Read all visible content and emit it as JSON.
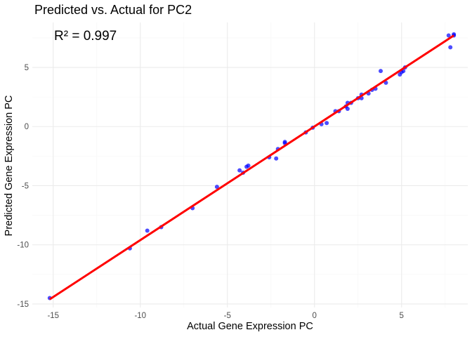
{
  "chart_data": {
    "type": "scatter",
    "title": "Predicted vs. Actual for PC2",
    "annotation": "R² = 0.997",
    "xlabel": "Actual Gene Expression PC",
    "ylabel": "Predicted Gene Expression PC",
    "xlim": [
      -16.2,
      8.8
    ],
    "ylim": [
      -15.3,
      8.8
    ],
    "x_ticks": [
      -15,
      -10,
      -5,
      0,
      5
    ],
    "x_tick_labels": [
      "-15",
      "-10",
      "-5",
      "0",
      "5"
    ],
    "y_ticks": [
      -15,
      -10,
      -5,
      0,
      5
    ],
    "y_tick_labels": [
      "-15",
      "-10",
      "-5",
      "0",
      "5"
    ],
    "grid": true,
    "points": [
      {
        "x": -15.2,
        "y": -14.5
      },
      {
        "x": -10.6,
        "y": -10.3
      },
      {
        "x": -9.6,
        "y": -8.8
      },
      {
        "x": -8.8,
        "y": -8.5
      },
      {
        "x": -7.0,
        "y": -6.9
      },
      {
        "x": -5.6,
        "y": -5.1
      },
      {
        "x": -4.3,
        "y": -3.7
      },
      {
        "x": -4.1,
        "y": -3.9
      },
      {
        "x": -3.9,
        "y": -3.4
      },
      {
        "x": -3.8,
        "y": -3.3
      },
      {
        "x": -2.6,
        "y": -2.6
      },
      {
        "x": -2.2,
        "y": -2.7
      },
      {
        "x": -2.1,
        "y": -1.9
      },
      {
        "x": -1.7,
        "y": -1.4
      },
      {
        "x": -1.7,
        "y": -1.3
      },
      {
        "x": -0.5,
        "y": -0.5
      },
      {
        "x": -0.1,
        "y": -0.1
      },
      {
        "x": 0.4,
        "y": 0.2
      },
      {
        "x": 0.7,
        "y": 0.3
      },
      {
        "x": 1.2,
        "y": 1.3
      },
      {
        "x": 1.4,
        "y": 1.3
      },
      {
        "x": 1.8,
        "y": 1.7
      },
      {
        "x": 1.9,
        "y": 1.5
      },
      {
        "x": 1.9,
        "y": 2.0
      },
      {
        "x": 2.1,
        "y": 2.0
      },
      {
        "x": 2.5,
        "y": 2.4
      },
      {
        "x": 2.7,
        "y": 2.4
      },
      {
        "x": 2.7,
        "y": 2.7
      },
      {
        "x": 3.1,
        "y": 2.8
      },
      {
        "x": 3.3,
        "y": 3.1
      },
      {
        "x": 3.5,
        "y": 3.2
      },
      {
        "x": 3.8,
        "y": 4.7
      },
      {
        "x": 4.1,
        "y": 3.7
      },
      {
        "x": 4.9,
        "y": 4.4
      },
      {
        "x": 5.0,
        "y": 4.6
      },
      {
        "x": 5.1,
        "y": 4.7
      },
      {
        "x": 5.2,
        "y": 5.0
      },
      {
        "x": 7.7,
        "y": 7.7
      },
      {
        "x": 7.8,
        "y": 6.7
      },
      {
        "x": 8.0,
        "y": 7.8
      },
      {
        "x": 8.0,
        "y": 7.7
      }
    ],
    "fit_line": {
      "x": [
        -15.2,
        8.0
      ],
      "y": [
        -14.6,
        7.7
      ]
    },
    "colors": {
      "points": "#0000ff",
      "fit_line": "#ff0000",
      "grid_major": "#ebebeb",
      "grid_minor": "#f5f5f5"
    }
  }
}
